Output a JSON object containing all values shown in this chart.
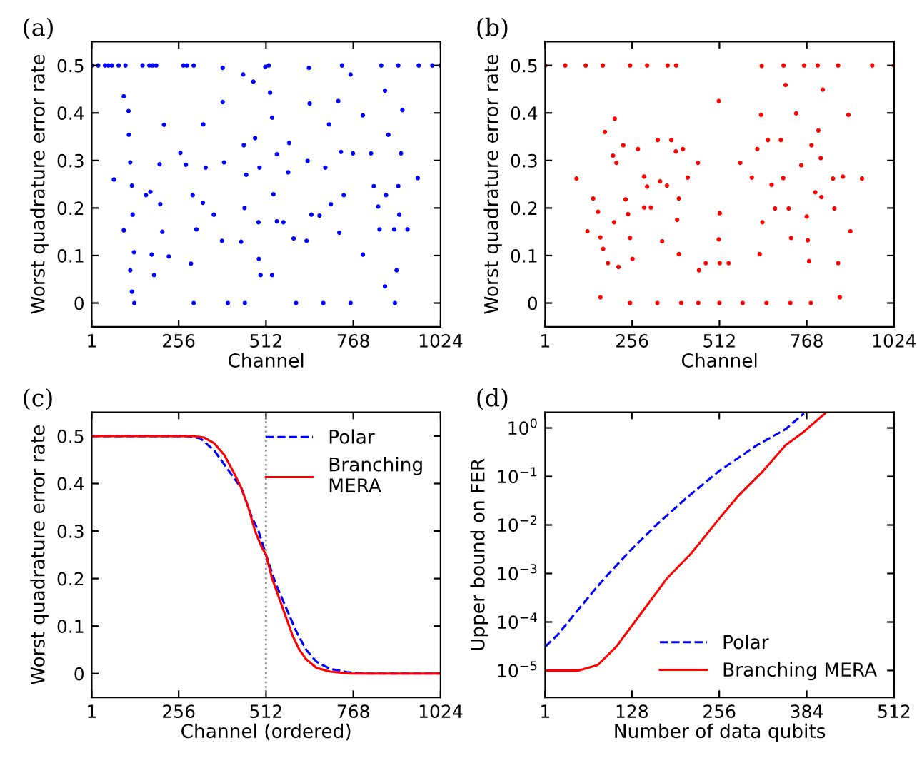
{
  "chart_data": [
    {
      "type": "scatter",
      "title": "(a)",
      "xlabel": "Channel",
      "ylabel": "Worst quadrature error rate",
      "xlim": [
        1,
        1024
      ],
      "ylim": [
        -0.05,
        0.55
      ],
      "xticks": [
        1,
        256,
        512,
        768,
        1024
      ],
      "yticks": [
        0,
        0.1,
        0.2,
        0.3,
        0.4,
        0.5
      ],
      "grid": false,
      "legend": false,
      "marker": "circle",
      "series": [
        {
          "color": "#0000ff",
          "x": [
            1,
            20,
            40,
            50,
            60,
            80,
            100,
            150,
            170,
            180,
            190,
            270,
            280,
            300,
            520,
            735,
            850,
            900,
            960,
            1000,
            1024,
            66,
            95,
            110,
            114,
            119,
            121,
            125,
            114,
            119,
            126,
            109,
            95,
            160,
            173,
            177,
            184,
            200,
            213,
            202,
            208,
            227,
            261,
            277,
            297,
            308,
            292,
            328,
            327,
            335,
            359,
            385,
            385,
            389,
            383,
            445,
            447,
            454,
            449,
            439,
            475,
            480,
            490,
            491,
            496,
            493,
            510,
            524,
            530,
            544,
            534,
            544,
            530,
            577,
            580,
            563,
            593,
            638,
            640,
            634,
            645,
            631,
            669,
            686,
            697,
            702,
            724,
            732,
            727,
            740,
            760,
            767,
            796,
            796,
            820,
            828,
            841,
            845,
            861,
            864,
            871,
            861,
            888,
            895,
            908,
            912,
            957,
            927,
            900,
            903,
            300,
            400,
            450,
            600,
            680,
            760,
            890
          ],
          "values": [
            0.5,
            0.5,
            0.5,
            0.5,
            0.5,
            0.5,
            0.5,
            0.5,
            0.5,
            0.5,
            0.5,
            0.5,
            0.5,
            0.5,
            0.5,
            0.5,
            0.5,
            0.5,
            0.5,
            0.5,
            0.5,
            0.26,
            0.153,
            0.354,
            0.296,
            0.247,
            0.186,
            0.107,
            0.069,
            0.024,
            0.0,
            0.404,
            0.435,
            0.227,
            0.234,
            0.102,
            0.059,
            0.292,
            0.375,
            0.208,
            0.15,
            0.098,
            0.316,
            0.291,
            0.227,
            0.155,
            0.083,
            0.376,
            0.211,
            0.285,
            0.186,
            0.495,
            0.423,
            0.296,
            0.131,
            0.481,
            0.332,
            0.27,
            0.2,
            0.129,
            0.466,
            0.347,
            0.17,
            0.093,
            0.059,
            0.285,
            0.497,
            0.443,
            0.39,
            0.313,
            0.229,
            0.172,
            0.059,
            0.275,
            0.337,
            0.17,
            0.136,
            0.495,
            0.42,
            0.299,
            0.186,
            0.131,
            0.184,
            0.285,
            0.376,
            0.208,
            0.425,
            0.318,
            0.148,
            0.227,
            0.481,
            0.315,
            0.395,
            0.102,
            0.315,
            0.246,
            0.203,
            0.155,
            0.447,
            0.227,
            0.354,
            0.035,
            0.155,
            0.069,
            0.315,
            0.406,
            0.263,
            0.155,
            0.246,
            0.186,
            0.0,
            0.0,
            0.0,
            0.0,
            0.0,
            0.0,
            0.0
          ]
        }
      ]
    },
    {
      "type": "scatter",
      "title": "(b)",
      "xlabel": "Channel",
      "ylabel": "Worst quadrature error rate",
      "xlim": [
        1,
        1024
      ],
      "ylim": [
        -0.05,
        0.55
      ],
      "xticks": [
        1,
        256,
        512,
        768,
        1024
      ],
      "yticks": [
        0,
        0.1,
        0.2,
        0.3,
        0.4,
        0.5
      ],
      "grid": false,
      "legend": false,
      "marker": "circle",
      "series": [
        {
          "color": "#ff0000",
          "x": [
            1,
            60,
            120,
            170,
            250,
            300,
            360,
            385,
            700,
            760,
            800,
            860,
            960,
            1024,
            93,
            125,
            142,
            156,
            163,
            171,
            176,
            185,
            200,
            210,
            205,
            203,
            216,
            230,
            237,
            244,
            250,
            257,
            273,
            291,
            300,
            291,
            311,
            331,
            338,
            344,
            358,
            371,
            384,
            388,
            393,
            405,
            393,
            419,
            449,
            452,
            472,
            510,
            513,
            510,
            513,
            539,
            573,
            607,
            623,
            630,
            636,
            634,
            638,
            654,
            665,
            675,
            692,
            699,
            706,
            715,
            722,
            737,
            752,
            768,
            771,
            775,
            782,
            793,
            802,
            809,
            811,
            815,
            845,
            849,
            860,
            874,
            890,
            896,
            930,
            865,
            163,
            250,
            330,
            400,
            450,
            512,
            580,
            650,
            720,
            780
          ],
          "values": [
            0.5,
            0.5,
            0.5,
            0.5,
            0.5,
            0.5,
            0.5,
            0.5,
            0.5,
            0.5,
            0.5,
            0.5,
            0.5,
            0.5,
            0.262,
            0.151,
            0.22,
            0.192,
            0.138,
            0.114,
            0.36,
            0.084,
            0.31,
            0.295,
            0.388,
            0.17,
            0.076,
            0.332,
            0.218,
            0.187,
            0.137,
            0.093,
            0.324,
            0.266,
            0.245,
            0.201,
            0.201,
            0.343,
            0.256,
            0.13,
            0.247,
            0.343,
            0.319,
            0.175,
            0.22,
            0.324,
            0.103,
            0.264,
            0.295,
            0.069,
            0.084,
            0.425,
            0.189,
            0.134,
            0.084,
            0.084,
            0.295,
            0.264,
            0.324,
            0.103,
            0.499,
            0.396,
            0.17,
            0.343,
            0.249,
            0.199,
            0.343,
            0.263,
            0.459,
            0.199,
            0.137,
            0.399,
            0.29,
            0.182,
            0.132,
            0.088,
            0.332,
            0.233,
            0.363,
            0.305,
            0.223,
            0.449,
            0.262,
            0.199,
            0.084,
            0.266,
            0.396,
            0.151,
            0.262,
            0.012,
            0.012,
            0.0,
            0.0,
            0.0,
            0.0,
            0.0,
            0.0,
            0.0,
            0.0,
            0.0
          ]
        }
      ]
    },
    {
      "type": "line",
      "title": "(c)",
      "xlabel": "Channel (ordered)",
      "ylabel": "Worst quadrature error rate",
      "xlim": [
        1,
        1024
      ],
      "ylim": [
        -0.05,
        0.55
      ],
      "xticks": [
        1,
        256,
        512,
        768,
        1024
      ],
      "yticks": [
        0,
        0.1,
        0.2,
        0.3,
        0.4,
        0.5
      ],
      "grid": false,
      "legend": "top right",
      "marker": "none",
      "ref_lines": [
        {
          "axis": "x",
          "value": 512,
          "color": "#808080",
          "line_style": "dotted"
        }
      ],
      "series": [
        {
          "name": "Polar",
          "color": "#0000ff",
          "line_style": "dashed",
          "x": [
            1,
            280,
            320,
            360,
            400,
            440,
            470,
            490,
            512,
            540,
            570,
            600,
            630,
            660,
            700,
            750,
            800,
            1024
          ],
          "values": [
            0.5,
            0.5,
            0.495,
            0.47,
            0.43,
            0.39,
            0.33,
            0.3,
            0.25,
            0.19,
            0.14,
            0.09,
            0.05,
            0.025,
            0.01,
            0.003,
            0.0,
            0.0
          ]
        },
        {
          "name": "Branching\nMERA",
          "color": "#ff0000",
          "line_style": "solid",
          "x": [
            1,
            300,
            330,
            360,
            390,
            420,
            440,
            460,
            480,
            500,
            512,
            530,
            550,
            570,
            590,
            610,
            630,
            660,
            700,
            760,
            1024
          ],
          "values": [
            0.5,
            0.5,
            0.497,
            0.485,
            0.46,
            0.42,
            0.39,
            0.35,
            0.3,
            0.265,
            0.25,
            0.2,
            0.16,
            0.12,
            0.08,
            0.05,
            0.03,
            0.012,
            0.004,
            0.0,
            0.0
          ]
        }
      ]
    },
    {
      "type": "line",
      "title": "(d)",
      "xlabel": "Number of data qubits",
      "ylabel": "Upper bound on FER",
      "log": "y",
      "xlim": [
        1,
        512
      ],
      "ylim": [
        2.8e-06,
        2.1
      ],
      "xticks": [
        1,
        128,
        256,
        384,
        512
      ],
      "yticks": [
        {
          "value": 1e-05,
          "label": "10$^{−5}$"
        },
        {
          "value": 0.0001,
          "label": "10$^{−4}$"
        },
        {
          "value": 0.001,
          "label": "10$^{−3}$"
        },
        {
          "value": 0.01,
          "label": "10$^{−2}$"
        },
        {
          "value": 0.1,
          "label": "10$^{−1}$"
        },
        {
          "value": 1,
          "label": "10$^{0}$"
        }
      ],
      "grid": false,
      "legend": "bottom right",
      "marker": "none",
      "series": [
        {
          "name": "Polar",
          "color": "#0000ff",
          "line_style": "dashed",
          "x": [
            1,
            19,
            43,
            71,
            91,
            126,
            167,
            208,
            256,
            311,
            353,
            380
          ],
          "values": [
            3.1e-05,
            5.4e-05,
            0.00014,
            0.00042,
            0.00089,
            0.003,
            0.011,
            0.036,
            0.13,
            0.44,
            0.94,
            2.0
          ]
        },
        {
          "name": "Branching MERA",
          "color": "#ff0000",
          "line_style": "solid",
          "x": [
            1,
            50,
            78,
            105,
            132,
            180,
            215,
            256,
            284,
            318,
            353,
            380,
            411
          ],
          "values": [
            1e-05,
            1e-05,
            1.3e-05,
            3.1e-05,
            0.0001,
            0.00081,
            0.0026,
            0.0135,
            0.04,
            0.12,
            0.44,
            0.84,
            2.0
          ]
        }
      ]
    }
  ]
}
